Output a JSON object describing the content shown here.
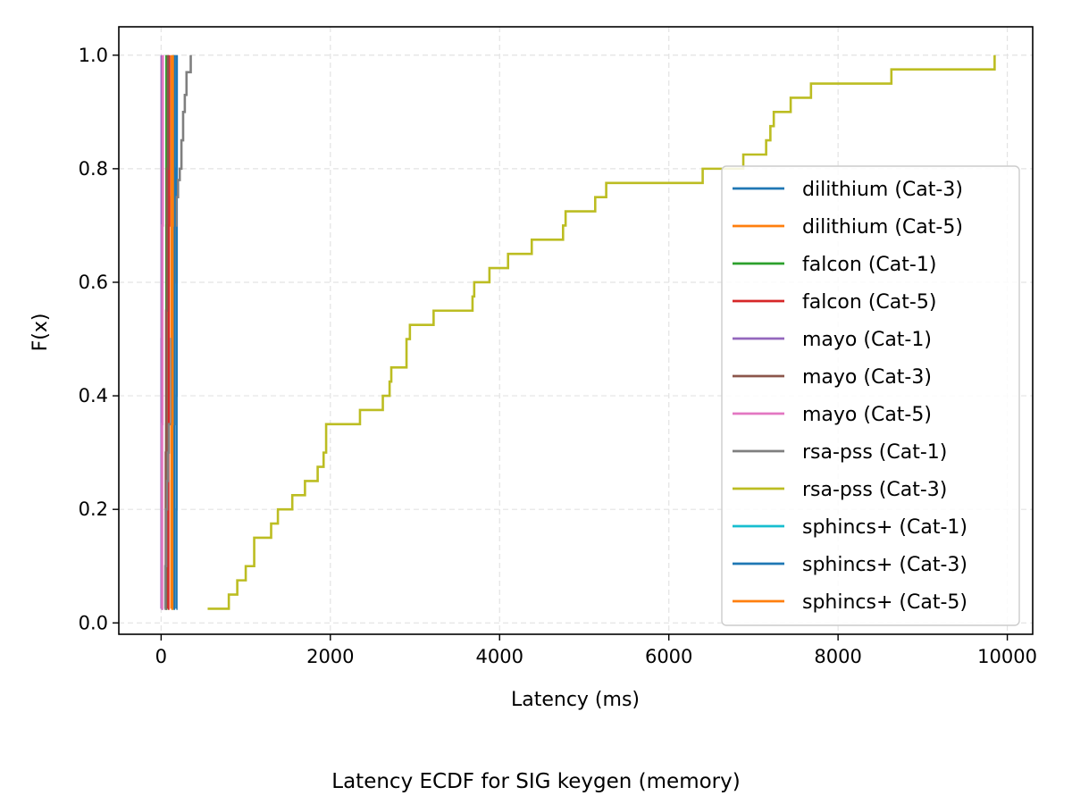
{
  "caption": "Latency ECDF for SIG keygen (memory)",
  "chart_data": {
    "type": "line",
    "step": true,
    "xlabel": "Latency (ms)",
    "ylabel": "F(x)",
    "xlim": [
      -500,
      10300
    ],
    "ylim": [
      -0.02,
      1.05
    ],
    "xticks": [
      0,
      2000,
      4000,
      6000,
      8000,
      10000
    ],
    "yticks": [
      0.0,
      0.2,
      0.4,
      0.6,
      0.8,
      1.0
    ],
    "xtick_labels": [
      "0",
      "2000",
      "4000",
      "6000",
      "8000",
      "10000"
    ],
    "ytick_labels": [
      "0.0",
      "0.2",
      "0.4",
      "0.6",
      "0.8",
      "1.0"
    ],
    "grid": true,
    "legend_position": "lower-right",
    "series": [
      {
        "name": "dilithium (Cat-3)",
        "color": "#1f77b4",
        "x": [
          180,
          181,
          182,
          183,
          184,
          185
        ],
        "y": [
          0.025,
          0.2,
          0.4,
          0.6,
          0.8,
          1.0
        ]
      },
      {
        "name": "dilithium (Cat-5)",
        "color": "#ff7f0e",
        "x": [
          120,
          121,
          122,
          123,
          124
        ],
        "y": [
          0.025,
          0.25,
          0.5,
          0.75,
          1.0
        ]
      },
      {
        "name": "falcon (Cat-1)",
        "color": "#2ca02c",
        "x": [
          60,
          61,
          62,
          63
        ],
        "y": [
          0.025,
          0.35,
          0.7,
          1.0
        ]
      },
      {
        "name": "falcon (Cat-5)",
        "color": "#d62728",
        "x": [
          80,
          85,
          90,
          95
        ],
        "y": [
          0.025,
          0.35,
          0.7,
          1.0
        ]
      },
      {
        "name": "mayo (Cat-1)",
        "color": "#9467bd",
        "x": [
          3,
          4,
          5
        ],
        "y": [
          0.025,
          0.5,
          1.0
        ]
      },
      {
        "name": "mayo (Cat-3)",
        "color": "#8c564b",
        "x": [
          50,
          55,
          60,
          70,
          80
        ],
        "y": [
          0.025,
          0.3,
          0.55,
          0.8,
          1.0
        ]
      },
      {
        "name": "mayo (Cat-5)",
        "color": "#e377c2",
        "x": [
          10,
          12,
          15,
          20
        ],
        "y": [
          0.025,
          0.35,
          0.7,
          1.0
        ]
      },
      {
        "name": "rsa-pss (Cat-1)",
        "color": "#7f7f7f",
        "x": [
          40,
          50,
          60,
          70,
          80,
          90,
          120,
          140,
          160,
          180,
          200,
          220,
          240,
          260,
          280,
          300,
          350
        ],
        "y": [
          0.025,
          0.1,
          0.2,
          0.25,
          0.3,
          0.35,
          0.5,
          0.6,
          0.7,
          0.75,
          0.78,
          0.8,
          0.85,
          0.9,
          0.93,
          0.97,
          1.0
        ]
      },
      {
        "name": "rsa-pss (Cat-3)",
        "color": "#bcbd22",
        "x": [
          550,
          800,
          900,
          1000,
          1100,
          1300,
          1380,
          1550,
          1700,
          1850,
          1920,
          1950,
          2350,
          2620,
          2700,
          2720,
          2900,
          2940,
          3220,
          3680,
          3700,
          3880,
          4100,
          4380,
          4750,
          4780,
          5130,
          5260,
          6400,
          6880,
          7150,
          7200,
          7240,
          7440,
          7680,
          8630,
          9850
        ],
        "y": [
          0.025,
          0.05,
          0.075,
          0.1,
          0.15,
          0.175,
          0.2,
          0.225,
          0.25,
          0.275,
          0.3,
          0.35,
          0.375,
          0.4,
          0.425,
          0.45,
          0.5,
          0.525,
          0.55,
          0.575,
          0.6,
          0.625,
          0.65,
          0.675,
          0.7,
          0.725,
          0.75,
          0.775,
          0.8,
          0.825,
          0.85,
          0.875,
          0.9,
          0.925,
          0.95,
          0.975,
          1.0
        ]
      },
      {
        "name": "sphincs+ (Cat-1)",
        "color": "#17becf",
        "x": [
          140,
          141,
          142
        ],
        "y": [
          0.025,
          0.5,
          1.0
        ]
      },
      {
        "name": "sphincs+ (Cat-3)",
        "color": "#1f77b4",
        "x": [
          150,
          152,
          155,
          158
        ],
        "y": [
          0.025,
          0.35,
          0.7,
          1.0
        ]
      },
      {
        "name": "sphincs+ (Cat-5)",
        "color": "#ff7f0e",
        "x": [
          130,
          132,
          135,
          138
        ],
        "y": [
          0.025,
          0.35,
          0.7,
          1.0
        ]
      }
    ]
  }
}
